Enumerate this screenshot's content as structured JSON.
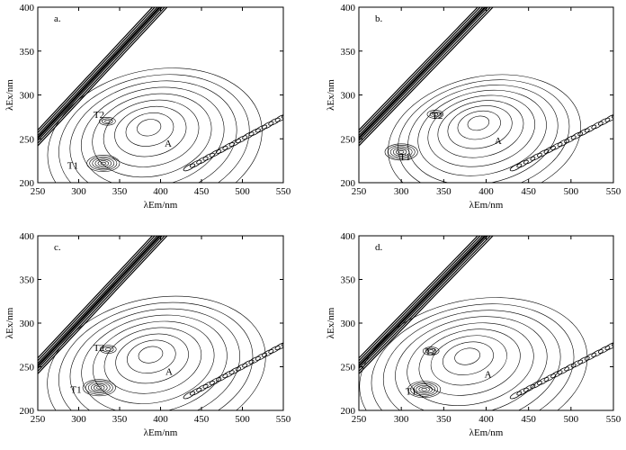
{
  "chart_data": [
    {
      "type": "contour",
      "panel_label": "a.",
      "xlabel": "λEm/nm",
      "ylabel": "λEx/nm",
      "xlim": [
        250,
        550
      ],
      "ylim": [
        200,
        400
      ],
      "xticks": [
        250,
        300,
        350,
        400,
        450,
        500,
        550
      ],
      "yticks": [
        200,
        250,
        300,
        350,
        400
      ],
      "peaks": [
        {
          "name": "T1",
          "sub": "1",
          "em": 330,
          "ex": 222,
          "label_at": [
            286,
            220
          ]
        },
        {
          "name": "T2",
          "sub": "2",
          "em": 335,
          "ex": 270,
          "label_at": [
            318,
            278
          ]
        },
        {
          "name": "A",
          "sub": "",
          "em": 393,
          "ex": 245,
          "label_at": [
            405,
            245
          ]
        }
      ],
      "outer_extent_em": [
        270,
        535
      ],
      "outer_extent_ex": [
        205,
        372
      ]
    },
    {
      "type": "contour",
      "panel_label": "b.",
      "xlabel": "λEm/nm",
      "ylabel": "λEx/nm",
      "xlim": [
        250,
        550
      ],
      "ylim": [
        200,
        400
      ],
      "xticks": [
        250,
        300,
        350,
        400,
        450,
        500,
        550
      ],
      "yticks": [
        200,
        250,
        300,
        350,
        400
      ],
      "peaks": [
        {
          "name": "T1",
          "sub": "1",
          "em": 300,
          "ex": 235,
          "label_at": [
            298,
            230
          ]
        },
        {
          "name": "T2",
          "sub": "2",
          "em": 340,
          "ex": 278,
          "label_at": [
            336,
            277
          ]
        },
        {
          "name": "A",
          "sub": "",
          "em": 398,
          "ex": 250,
          "label_at": [
            410,
            248
          ]
        }
      ],
      "outer_extent_em": [
        290,
        520
      ],
      "outer_extent_ex": [
        230,
        372
      ]
    },
    {
      "type": "contour",
      "panel_label": "c.",
      "xlabel": "λEm/nm",
      "ylabel": "λEx/nm",
      "xlim": [
        250,
        550
      ],
      "ylim": [
        200,
        400
      ],
      "xticks": [
        250,
        300,
        350,
        400,
        450,
        500,
        550
      ],
      "yticks": [
        200,
        250,
        300,
        350,
        400
      ],
      "peaks": [
        {
          "name": "T1",
          "sub": "1",
          "em": 325,
          "ex": 226,
          "label_at": [
            290,
            224
          ]
        },
        {
          "name": "T2",
          "sub": "2",
          "em": 336,
          "ex": 270,
          "label_at": [
            318,
            272
          ]
        },
        {
          "name": "A",
          "sub": "",
          "em": 395,
          "ex": 246,
          "label_at": [
            406,
            245
          ]
        }
      ],
      "outer_extent_em": [
        270,
        540
      ],
      "outer_extent_ex": [
        210,
        375
      ]
    },
    {
      "type": "contour",
      "panel_label": "d.",
      "xlabel": "λEm/nm",
      "ylabel": "λEx/nm",
      "xlim": [
        250,
        550
      ],
      "ylim": [
        200,
        400
      ],
      "xticks": [
        250,
        300,
        350,
        400,
        450,
        500,
        550
      ],
      "yticks": [
        200,
        250,
        300,
        350,
        400
      ],
      "peaks": [
        {
          "name": "T1",
          "sub": "1",
          "em": 327,
          "ex": 224,
          "label_at": [
            305,
            222
          ]
        },
        {
          "name": "T2",
          "sub": "2",
          "em": 335,
          "ex": 268,
          "label_at": [
            328,
            268
          ]
        },
        {
          "name": "A",
          "sub": "",
          "em": 385,
          "ex": 244,
          "label_at": [
            398,
            242
          ]
        }
      ],
      "outer_extent_em": [
        268,
        540
      ],
      "outer_extent_ex": [
        210,
        375
      ]
    }
  ]
}
